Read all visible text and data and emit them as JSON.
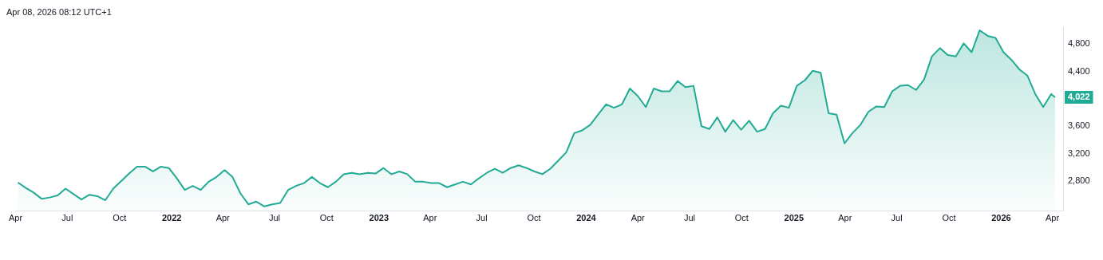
{
  "chart_data": {
    "type": "area",
    "annotations": [
      "Apr 08, 2026 08:12 UTC+1"
    ],
    "x": [
      "2021-04-05",
      "2021-04-19",
      "2021-05-03",
      "2021-05-17",
      "2021-05-31",
      "2021-06-14",
      "2021-06-28",
      "2021-07-12",
      "2021-07-26",
      "2021-08-09",
      "2021-08-23",
      "2021-09-06",
      "2021-09-20",
      "2021-10-04",
      "2021-10-18",
      "2021-11-01",
      "2021-11-15",
      "2021-11-29",
      "2021-12-13",
      "2021-12-27",
      "2022-01-10",
      "2022-01-24",
      "2022-02-07",
      "2022-02-21",
      "2022-03-07",
      "2022-03-21",
      "2022-04-04",
      "2022-04-18",
      "2022-05-02",
      "2022-05-16",
      "2022-05-30",
      "2022-06-13",
      "2022-06-27",
      "2022-07-11",
      "2022-07-25",
      "2022-08-08",
      "2022-08-22",
      "2022-09-05",
      "2022-09-19",
      "2022-10-03",
      "2022-10-17",
      "2022-10-31",
      "2022-11-14",
      "2022-11-28",
      "2022-12-12",
      "2022-12-26",
      "2023-01-09",
      "2023-01-23",
      "2023-02-06",
      "2023-02-20",
      "2023-03-06",
      "2023-03-20",
      "2023-04-03",
      "2023-04-17",
      "2023-05-01",
      "2023-05-15",
      "2023-05-29",
      "2023-06-12",
      "2023-06-26",
      "2023-07-10",
      "2023-07-24",
      "2023-08-07",
      "2023-08-21",
      "2023-09-04",
      "2023-09-18",
      "2023-10-02",
      "2023-10-16",
      "2023-10-30",
      "2023-11-13",
      "2023-11-27",
      "2023-12-11",
      "2023-12-25",
      "2024-01-08",
      "2024-01-22",
      "2024-02-05",
      "2024-02-19",
      "2024-03-04",
      "2024-03-18",
      "2024-04-01",
      "2024-04-15",
      "2024-04-29",
      "2024-05-13",
      "2024-05-27",
      "2024-06-10",
      "2024-06-24",
      "2024-07-08",
      "2024-07-22",
      "2024-08-05",
      "2024-08-19",
      "2024-09-02",
      "2024-09-16",
      "2024-09-30",
      "2024-10-14",
      "2024-10-28",
      "2024-11-11",
      "2024-11-25",
      "2024-12-09",
      "2024-12-23",
      "2025-01-06",
      "2025-01-20",
      "2025-02-03",
      "2025-02-17",
      "2025-03-03",
      "2025-03-17",
      "2025-03-31",
      "2025-04-14",
      "2025-04-28",
      "2025-05-12",
      "2025-05-26",
      "2025-06-09",
      "2025-06-23",
      "2025-07-07",
      "2025-07-21",
      "2025-08-04",
      "2025-08-18",
      "2025-09-01",
      "2025-09-15",
      "2025-09-29",
      "2025-10-13",
      "2025-10-27",
      "2025-11-10",
      "2025-11-24",
      "2025-12-08",
      "2025-12-22",
      "2026-01-05",
      "2026-01-19",
      "2026-02-02",
      "2026-02-16",
      "2026-03-02",
      "2026-03-16",
      "2026-03-30",
      "2026-04-06"
    ],
    "values": [
      2780,
      2700,
      2630,
      2540,
      2560,
      2590,
      2690,
      2610,
      2530,
      2600,
      2580,
      2520,
      2690,
      2800,
      2910,
      3010,
      3010,
      2940,
      3010,
      2990,
      2840,
      2670,
      2730,
      2670,
      2790,
      2860,
      2960,
      2860,
      2620,
      2460,
      2500,
      2430,
      2460,
      2480,
      2670,
      2730,
      2770,
      2860,
      2770,
      2710,
      2790,
      2900,
      2920,
      2900,
      2920,
      2910,
      2990,
      2900,
      2940,
      2900,
      2790,
      2790,
      2770,
      2770,
      2710,
      2750,
      2790,
      2750,
      2840,
      2920,
      2980,
      2920,
      2990,
      3030,
      2990,
      2940,
      2900,
      2980,
      3100,
      3220,
      3500,
      3540,
      3620,
      3770,
      3920,
      3870,
      3920,
      4150,
      4040,
      3880,
      4150,
      4110,
      4110,
      4260,
      4170,
      4190,
      3600,
      3560,
      3730,
      3520,
      3690,
      3550,
      3680,
      3520,
      3560,
      3790,
      3900,
      3870,
      4190,
      4270,
      4410,
      4380,
      3790,
      3770,
      3350,
      3500,
      3620,
      3810,
      3890,
      3880,
      4110,
      4190,
      4200,
      4130,
      4280,
      4620,
      4740,
      4640,
      4620,
      4810,
      4680,
      5000,
      4920,
      4890,
      4680,
      4570,
      4430,
      4340,
      4070,
      3880,
      4070,
      4022
    ],
    "value_labels": [
      null,
      null,
      null,
      null,
      null,
      null,
      null,
      null,
      null,
      null,
      null,
      null,
      null,
      null,
      null,
      null,
      null,
      null,
      null,
      null,
      null,
      null,
      null,
      null,
      null,
      null,
      null,
      null,
      null,
      null,
      null,
      null,
      null,
      null,
      null,
      null,
      null,
      null,
      null,
      null,
      null,
      null,
      null,
      null,
      null,
      null,
      null,
      null,
      null,
      null,
      null,
      null,
      null,
      null,
      null,
      null,
      null,
      null,
      null,
      null,
      null,
      null,
      null,
      null,
      null,
      null,
      null,
      null,
      null,
      null,
      null,
      null,
      null,
      null,
      null,
      null,
      null,
      null,
      null,
      null,
      null,
      null,
      null,
      null,
      null,
      null,
      null,
      null,
      null,
      null,
      null,
      null,
      null,
      null,
      null,
      null,
      null,
      null,
      null,
      null,
      null,
      null,
      null,
      null,
      null,
      null,
      null,
      null,
      null,
      null,
      null,
      null,
      null,
      null,
      null,
      null,
      null,
      null,
      null,
      null,
      null,
      null,
      null,
      null,
      null,
      null,
      null,
      null,
      null,
      null,
      null,
      "4,022"
    ],
    "color": "#22ab94",
    "xlim": [
      "2021-04-01",
      "2026-04-20"
    ],
    "xticks": [
      {
        "value": "2021-04-01",
        "label": "Apr"
      },
      {
        "value": "2021-07-01",
        "label": "Jul"
      },
      {
        "value": "2021-10-01",
        "label": "Oct"
      },
      {
        "value": "2022-01-01",
        "label": "2022"
      },
      {
        "value": "2022-04-01",
        "label": "Apr"
      },
      {
        "value": "2022-07-01",
        "label": "Jul"
      },
      {
        "value": "2022-10-01",
        "label": "Oct"
      },
      {
        "value": "2023-01-01",
        "label": "2023"
      },
      {
        "value": "2023-04-01",
        "label": "Apr"
      },
      {
        "value": "2023-07-01",
        "label": "Jul"
      },
      {
        "value": "2023-10-01",
        "label": "Oct"
      },
      {
        "value": "2024-01-01",
        "label": "2024"
      },
      {
        "value": "2024-04-01",
        "label": "Apr"
      },
      {
        "value": "2024-07-01",
        "label": "Jul"
      },
      {
        "value": "2024-10-01",
        "label": "Oct"
      },
      {
        "value": "2025-01-01",
        "label": "2025"
      },
      {
        "value": "2025-04-01",
        "label": "Apr"
      },
      {
        "value": "2025-07-01",
        "label": "Jul"
      },
      {
        "value": "2025-10-01",
        "label": "Oct"
      },
      {
        "value": "2026-01-01",
        "label": "2026"
      },
      {
        "value": "2026-04-01",
        "label": "Apr"
      }
    ],
    "ylim": [
      2360,
      5040
    ],
    "yticks": [
      {
        "value": 2800,
        "label": "2,800"
      },
      {
        "value": 3200,
        "label": "3,200"
      },
      {
        "value": 3600,
        "label": "3,600"
      },
      {
        "value": 4400,
        "label": "4,400"
      },
      {
        "value": 4800,
        "label": "4,800"
      }
    ]
  }
}
